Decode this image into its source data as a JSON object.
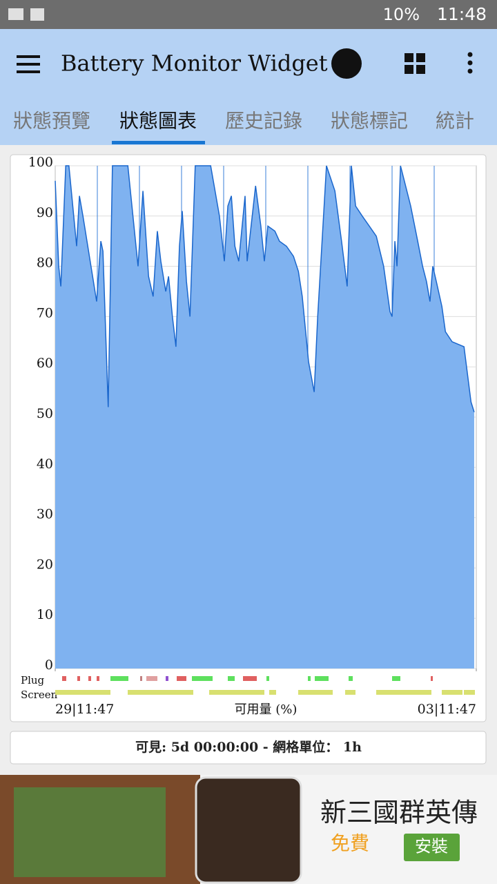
{
  "status_bar": {
    "battery": "10%",
    "time": "11:48"
  },
  "app_bar": {
    "title": "Battery Monitor Widget"
  },
  "tabs": [
    "狀態預覽",
    "狀態圖表",
    "歷史記錄",
    "狀態標記",
    "統計"
  ],
  "chart_data": {
    "type": "area",
    "xlabel": "可用量 (%)",
    "color": "#7fb2f0",
    "line_color": "#1a66cc",
    "xlim": [
      0,
      120
    ],
    "ylim": [
      0,
      100
    ],
    "yticks": [
      0,
      10,
      20,
      30,
      40,
      50,
      60,
      70,
      80,
      90,
      100
    ],
    "grid": true,
    "xticks": [
      {
        "value": 0,
        "label": "29|11:47"
      },
      {
        "value": 120,
        "label": "03|11:47"
      }
    ],
    "track_labels": [
      "Plug",
      "Screen"
    ],
    "x": [
      0,
      1,
      1.6,
      3,
      3.9,
      6.1,
      6.9,
      7.9,
      11.8,
      13,
      13.6,
      15.1,
      16.3,
      20.7,
      23.6,
      25,
      26.6,
      27.9,
      29.1,
      30.1,
      31.5,
      32.3,
      33.4,
      34.4,
      35.4,
      36.2,
      37.4,
      38.4,
      39.9,
      44.3,
      46.8,
      48.2,
      49.2,
      50.2,
      51.2,
      52.3,
      54.1,
      54.7,
      57.1,
      58.6,
      59.6,
      60.6,
      62.6,
      63.9,
      65.9,
      67.9,
      69.3,
      70.4,
      72.2,
      73.8,
      74.8,
      77.3,
      79.7,
      81.6,
      83.2,
      84.4,
      85.6,
      87.5,
      89.5,
      91.5,
      93.6,
      95.4,
      96,
      96.8,
      97.4,
      98.4,
      101.3,
      103.3,
      104.7,
      105.8,
      106.8,
      107.6,
      108.6,
      110.2,
      111.2,
      113.1,
      116.5,
      118.5,
      119.4
    ],
    "values": [
      97,
      80,
      76,
      100,
      100,
      84,
      94,
      90,
      73,
      85,
      83,
      52,
      100,
      100,
      80,
      95,
      78,
      74,
      87,
      81,
      75,
      78,
      70,
      64,
      84,
      91,
      77,
      70,
      100,
      100,
      90,
      81,
      92,
      94,
      84,
      81,
      94,
      81,
      96,
      88,
      81,
      88,
      87,
      85,
      84,
      82,
      79,
      74,
      61,
      55,
      70,
      100,
      95,
      85,
      76,
      100,
      92,
      90,
      88,
      86,
      80,
      71,
      70,
      85,
      80,
      100,
      92,
      85,
      80,
      77,
      73,
      80,
      77,
      72,
      67,
      65,
      64,
      53,
      51
    ]
  },
  "footer": {
    "text": "可見: 5d 00:00:00 - 網格單位： 1h"
  },
  "ad": {
    "title": "新三國群英傳",
    "price": "免費",
    "button": "安裝"
  }
}
